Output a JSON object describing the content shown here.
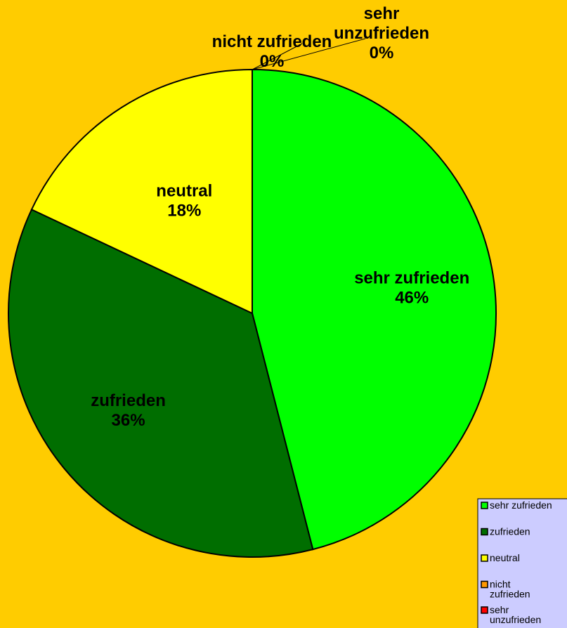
{
  "chart_data": {
    "type": "pie",
    "categories": [
      "sehr zufrieden",
      "zufrieden",
      "neutral",
      "nicht zufrieden",
      "sehr unzufrieden"
    ],
    "values": [
      46,
      36,
      18,
      0,
      0
    ],
    "value_labels": [
      "46%",
      "36%",
      "18%",
      "0%",
      "0%"
    ],
    "colors": [
      "#00ff00",
      "#006e00",
      "#ffff00",
      "#ff9900",
      "#ff0000"
    ],
    "legend": "bottom-right"
  }
}
